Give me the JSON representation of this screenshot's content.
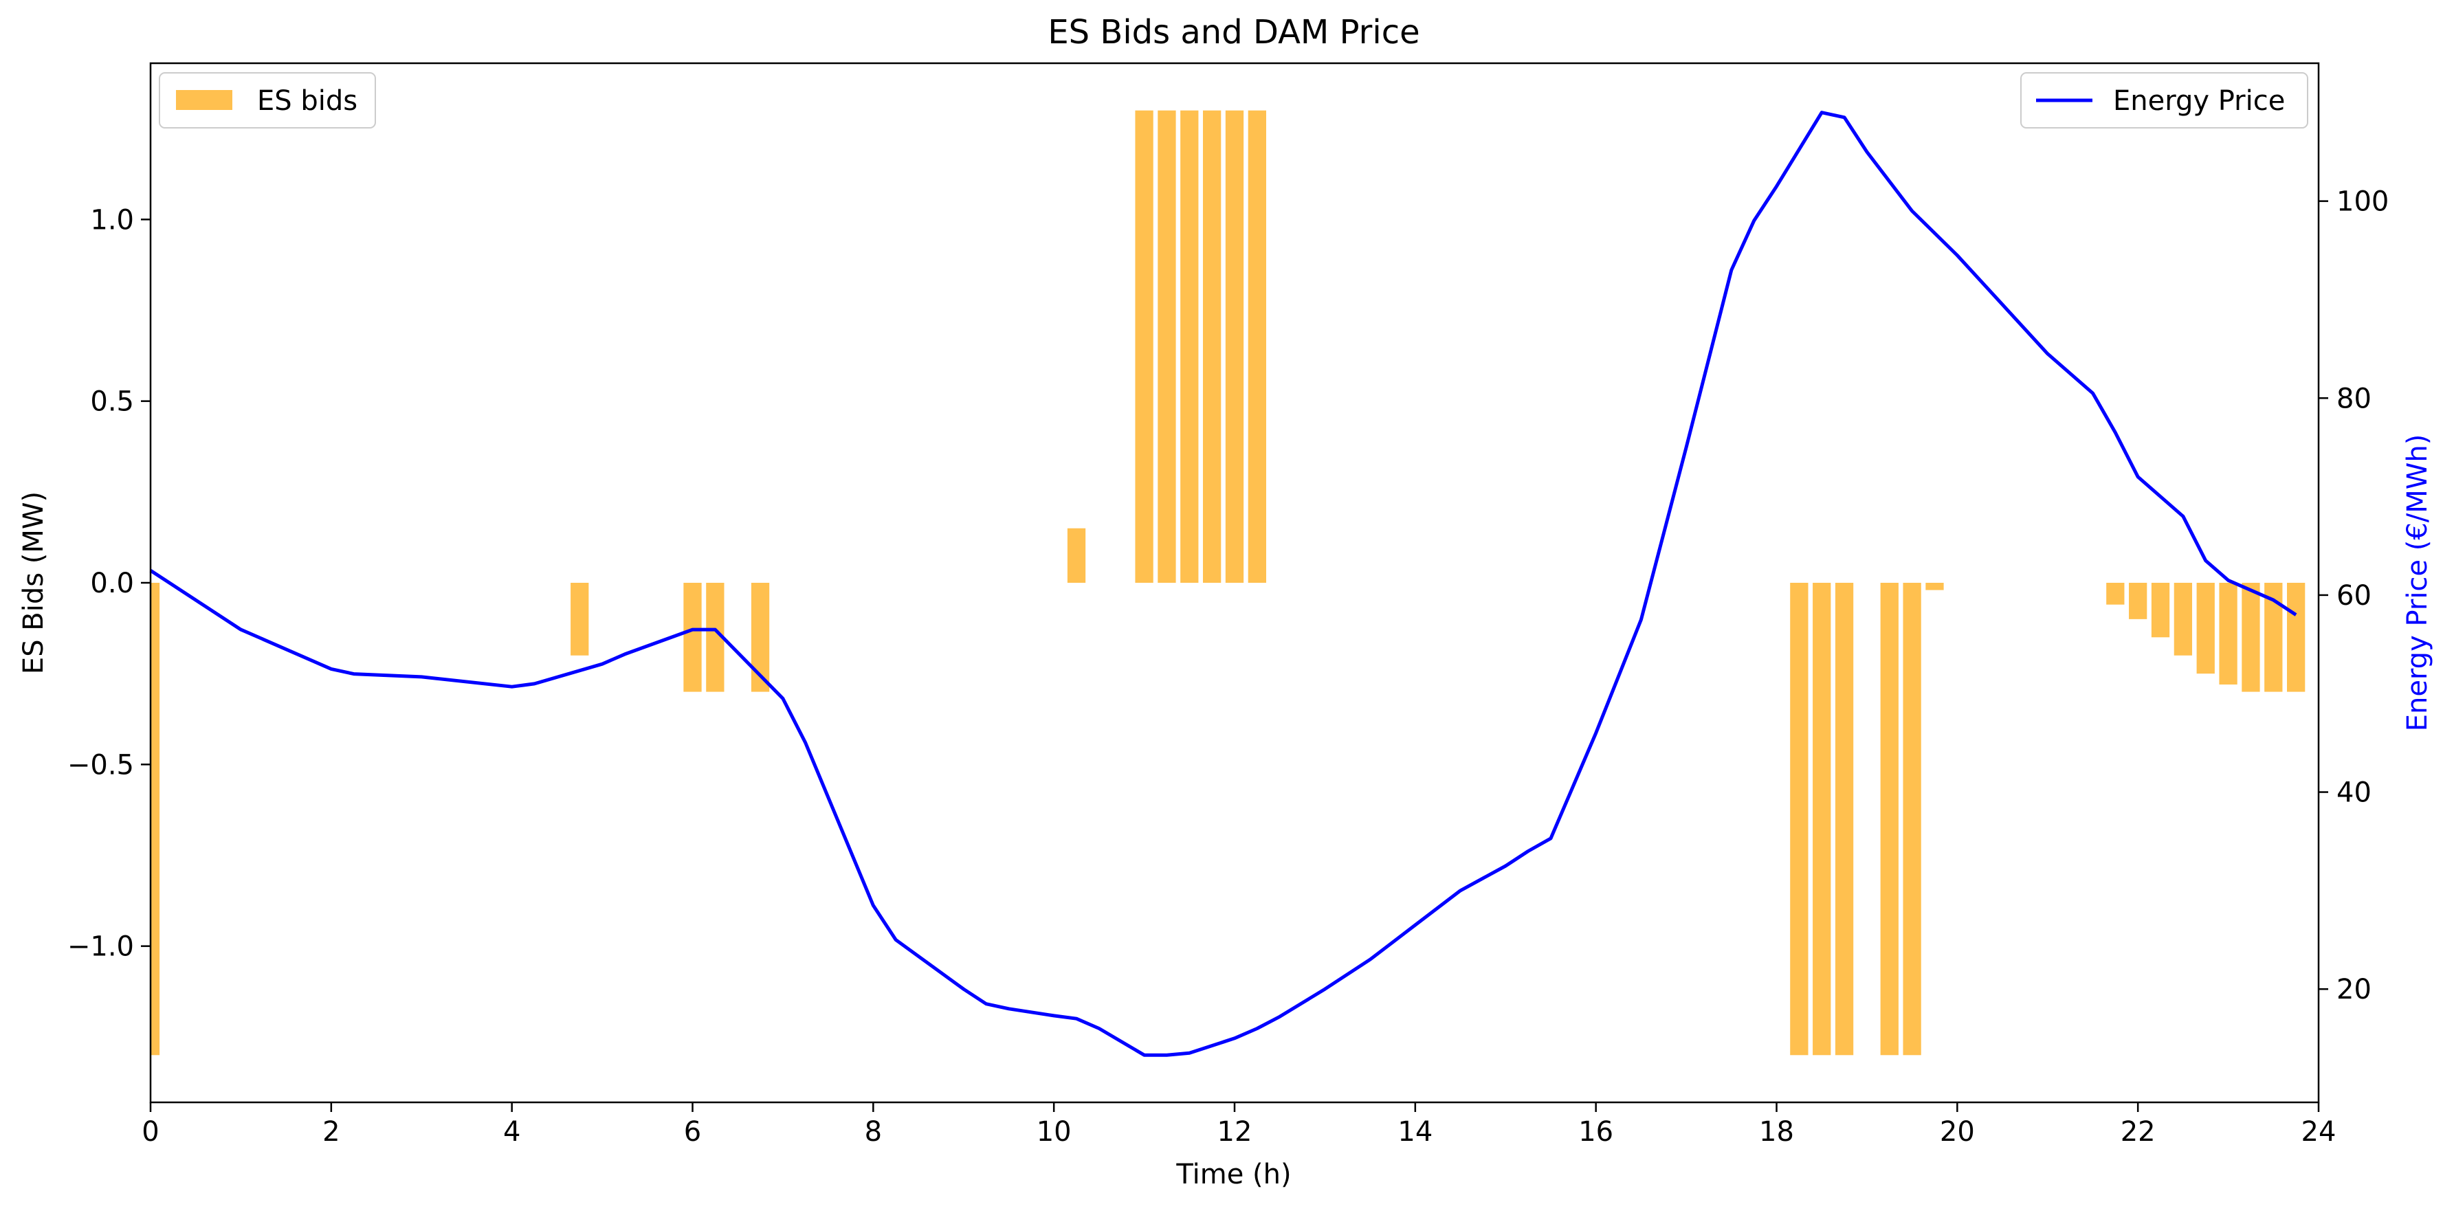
{
  "chart_data": {
    "type": "bar+line",
    "title": "ES Bids and DAM Price",
    "xlabel": "Time (h)",
    "ylabel_left": "ES Bids (MW)",
    "ylabel_right": "Energy Price (€/MWh)",
    "xlim": [
      0,
      24
    ],
    "ylim_left": [
      -1.43,
      1.43
    ],
    "ylim_right": [
      8.5,
      114
    ],
    "x_ticks": [
      0,
      2,
      4,
      6,
      8,
      10,
      12,
      14,
      16,
      18,
      20,
      22,
      24
    ],
    "x_tick_labels": [
      "0",
      "2",
      "4",
      "6",
      "8",
      "10",
      "12",
      "14",
      "16",
      "18",
      "20",
      "22",
      "24"
    ],
    "y_left_ticks": [
      -1.0,
      -0.5,
      0.0,
      0.5,
      1.0
    ],
    "y_left_tick_labels": [
      "−1.0",
      "−0.5",
      "0.0",
      "0.5",
      "1.0"
    ],
    "y_right_ticks": [
      20,
      40,
      60,
      80,
      100
    ],
    "y_right_tick_labels": [
      "20",
      "40",
      "60",
      "80",
      "100"
    ],
    "grid": false,
    "colors": {
      "bars": "#ffc04f",
      "line": "#0000ff",
      "right_axis_label": "#0000ff"
    },
    "legends": [
      {
        "label": "ES bids",
        "position": "upper-left"
      },
      {
        "label": "Energy Price",
        "position": "upper-right"
      }
    ],
    "bar_width_hours": 0.2,
    "bars": {
      "name": "ES bids",
      "x": [
        0.0,
        4.75,
        6.0,
        6.25,
        6.75,
        10.25,
        11.0,
        11.25,
        11.5,
        11.75,
        12.0,
        12.25,
        18.25,
        18.5,
        18.75,
        19.25,
        19.5,
        19.75,
        21.75,
        22.0,
        22.25,
        22.5,
        22.75,
        23.0,
        23.25,
        23.5,
        23.75
      ],
      "values": [
        -1.3,
        -0.2,
        -0.3,
        -0.3,
        -0.3,
        0.15,
        1.3,
        1.3,
        1.3,
        1.3,
        1.3,
        1.3,
        -1.3,
        -1.3,
        -1.3,
        -1.3,
        -1.3,
        -0.02,
        -0.06,
        -0.1,
        -0.15,
        -0.2,
        -0.25,
        -0.28,
        -0.3,
        -0.3,
        -0.3
      ]
    },
    "line": {
      "name": "Energy Price",
      "x": [
        0.0,
        1.0,
        1.25,
        2.0,
        2.25,
        3.0,
        4.0,
        4.25,
        5.0,
        5.25,
        6.0,
        6.25,
        7.0,
        7.25,
        8.0,
        8.25,
        9.0,
        9.25,
        9.5,
        10.0,
        10.25,
        10.5,
        11.0,
        11.25,
        11.5,
        12.0,
        12.25,
        12.5,
        13.0,
        13.5,
        14.0,
        14.5,
        15.0,
        15.25,
        15.5,
        16.0,
        16.5,
        17.0,
        17.5,
        17.75,
        18.0,
        18.5,
        18.75,
        19.0,
        19.5,
        20.0,
        20.5,
        21.0,
        21.5,
        21.75,
        22.0,
        22.5,
        22.75,
        23.0,
        23.5,
        23.75
      ],
      "values": [
        62.5,
        56.5,
        55.5,
        52.5,
        52.0,
        51.7,
        50.7,
        51.0,
        53.0,
        54.0,
        56.5,
        56.5,
        49.5,
        45.0,
        28.5,
        25.0,
        20.0,
        18.5,
        18.0,
        17.3,
        17.0,
        16.0,
        13.3,
        13.3,
        13.5,
        15.0,
        16.0,
        17.2,
        20.0,
        23.0,
        26.5,
        30.0,
        32.5,
        34.0,
        35.3,
        46.0,
        57.5,
        75.0,
        93.0,
        98.0,
        101.5,
        109.0,
        108.5,
        105.0,
        99.0,
        94.5,
        89.5,
        84.5,
        80.5,
        76.5,
        72.0,
        68.0,
        63.5,
        61.5,
        59.5,
        58.0
      ]
    }
  }
}
